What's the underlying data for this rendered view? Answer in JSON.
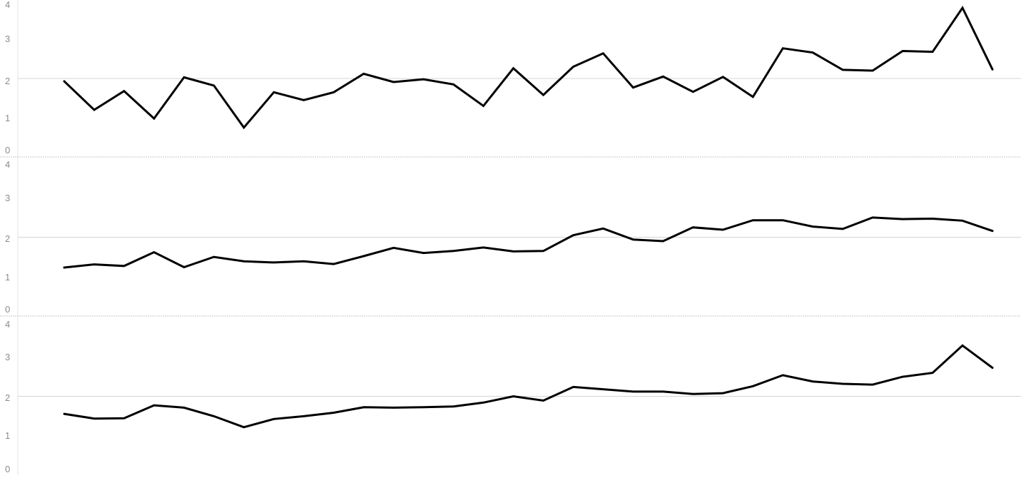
{
  "chart_data": [
    {
      "type": "line",
      "panel": 1,
      "yticks": [
        "0",
        "1",
        "2",
        "3",
        "4"
      ],
      "ylim": [
        0,
        4
      ],
      "reference_line_y": 2,
      "grid": false,
      "colors": {
        "line": "#000000",
        "reference": "#d4d4d4",
        "ticks": "#8c8c8c"
      },
      "values": [
        1.93,
        1.2,
        1.68,
        0.98,
        2.03,
        1.82,
        0.75,
        1.65,
        1.45,
        1.65,
        2.12,
        1.91,
        1.98,
        1.85,
        1.3,
        2.26,
        1.58,
        2.3,
        2.64,
        1.77,
        2.05,
        1.66,
        2.04,
        1.53,
        2.77,
        2.66,
        2.22,
        2.2,
        2.7,
        2.68,
        3.8,
        2.23
      ]
    },
    {
      "type": "line",
      "panel": 2,
      "yticks": [
        "0",
        "1",
        "2",
        "3",
        "4"
      ],
      "ylim": [
        0,
        4
      ],
      "reference_line_y": 2,
      "grid": false,
      "colors": {
        "line": "#000000",
        "reference": "#d4d4d4",
        "ticks": "#8c8c8c"
      },
      "values": [
        1.23,
        1.31,
        1.27,
        1.62,
        1.24,
        1.5,
        1.39,
        1.36,
        1.39,
        1.32,
        1.52,
        1.73,
        1.6,
        1.65,
        1.74,
        1.64,
        1.65,
        2.05,
        2.22,
        1.94,
        1.9,
        2.25,
        2.19,
        2.43,
        2.43,
        2.27,
        2.21,
        2.5,
        2.46,
        2.47,
        2.42,
        2.16
      ]
    },
    {
      "type": "line",
      "panel": 3,
      "yticks": [
        "0",
        "1",
        "2",
        "3",
        "4"
      ],
      "ylim": [
        0,
        4
      ],
      "reference_line_y": 2,
      "grid": false,
      "colors": {
        "line": "#000000",
        "reference": "#d4d4d4",
        "ticks": "#8c8c8c"
      },
      "values": [
        1.55,
        1.43,
        1.44,
        1.77,
        1.71,
        1.49,
        1.21,
        1.42,
        1.49,
        1.58,
        1.72,
        1.71,
        1.72,
        1.74,
        1.84,
        2.0,
        1.89,
        2.24,
        2.18,
        2.12,
        2.12,
        2.06,
        2.08,
        2.26,
        2.54,
        2.38,
        2.32,
        2.3,
        2.5,
        2.6,
        3.3,
        2.73
      ]
    }
  ]
}
